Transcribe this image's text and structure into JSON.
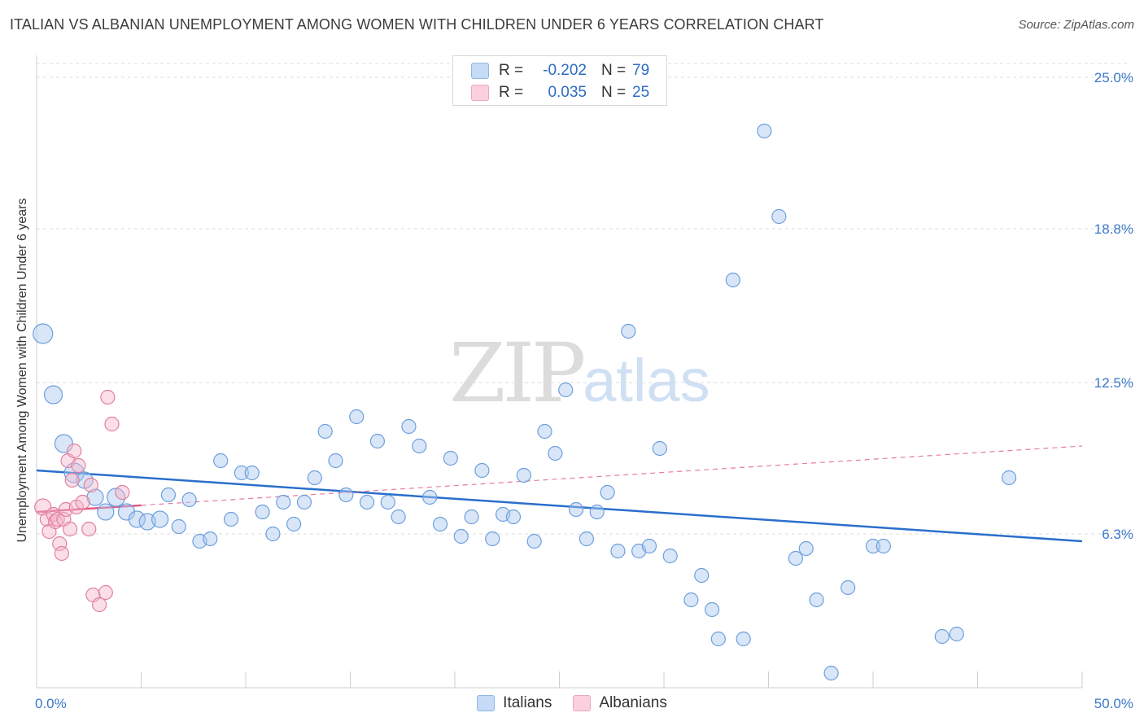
{
  "header": {
    "title": "ITALIAN VS ALBANIAN UNEMPLOYMENT AMONG WOMEN WITH CHILDREN UNDER 6 YEARS CORRELATION CHART",
    "source": "Source: ZipAtlas.com"
  },
  "watermark": {
    "zip": "ZIP",
    "atlas": "atlas"
  },
  "legend": {
    "rows": [
      {
        "label": "R =",
        "r": "-0.202",
        "n_label": "N =",
        "n": "79",
        "color": "#aac8ef"
      },
      {
        "label": "R =",
        "r": "0.035",
        "n_label": "N =",
        "n": "25",
        "color": "#f5b8cb"
      }
    ],
    "bottom": [
      "Italians",
      "Albanians"
    ]
  },
  "chart_data": {
    "type": "scatter",
    "title": "ITALIAN VS ALBANIAN UNEMPLOYMENT AMONG WOMEN WITH CHILDREN UNDER 6 YEARS CORRELATION CHART",
    "xlabel": "",
    "ylabel": "Unemployment Among Women with Children Under 6 years",
    "xlim": [
      0,
      50
    ],
    "ylim": [
      0,
      25
    ],
    "x_tick_labels": [
      "0.0%",
      "50.0%"
    ],
    "y_ticks": [
      6.3,
      12.5,
      18.8,
      25.0
    ],
    "y_tick_labels": [
      "6.3%",
      "12.5%",
      "18.8%",
      "25.0%"
    ],
    "grid": true,
    "series": [
      {
        "name": "Italians",
        "color": "#aac8ef",
        "stroke": "#6c9fdc",
        "trend": {
          "x": [
            0,
            50
          ],
          "y": [
            8.9,
            6.0
          ],
          "color": "#2a6fcc",
          "style": "solid"
        },
        "points": [
          [
            0.3,
            14.5,
            6
          ],
          [
            0.8,
            12.0,
            5
          ],
          [
            1.3,
            10.0,
            5
          ],
          [
            1.8,
            8.8,
            6
          ],
          [
            2.3,
            8.5,
            4
          ],
          [
            2.8,
            7.8,
            4
          ],
          [
            3.3,
            7.2,
            4
          ],
          [
            3.8,
            7.8,
            5
          ],
          [
            4.3,
            7.2,
            4
          ],
          [
            4.8,
            6.9,
            4
          ],
          [
            5.3,
            6.8,
            4
          ],
          [
            5.9,
            6.9,
            4
          ],
          [
            6.3,
            7.9,
            3
          ],
          [
            6.8,
            6.6,
            3
          ],
          [
            7.3,
            7.7,
            3
          ],
          [
            7.8,
            6.0,
            3
          ],
          [
            8.3,
            6.1,
            3
          ],
          [
            8.8,
            9.3,
            3
          ],
          [
            9.3,
            6.9,
            3
          ],
          [
            9.8,
            8.8,
            3
          ],
          [
            10.3,
            8.8,
            3
          ],
          [
            10.8,
            7.2,
            3
          ],
          [
            11.3,
            6.3,
            3
          ],
          [
            11.8,
            7.6,
            3
          ],
          [
            12.3,
            6.7,
            3
          ],
          [
            12.8,
            7.6,
            3
          ],
          [
            13.3,
            8.6,
            3
          ],
          [
            13.8,
            10.5,
            3
          ],
          [
            14.3,
            9.3,
            3
          ],
          [
            14.8,
            7.9,
            3
          ],
          [
            15.3,
            11.1,
            3
          ],
          [
            15.8,
            7.6,
            3
          ],
          [
            16.3,
            10.1,
            3
          ],
          [
            16.8,
            7.6,
            3
          ],
          [
            17.3,
            7.0,
            3
          ],
          [
            17.8,
            10.7,
            3
          ],
          [
            18.3,
            9.9,
            3
          ],
          [
            18.8,
            7.8,
            3
          ],
          [
            19.3,
            6.7,
            3
          ],
          [
            19.8,
            9.4,
            3
          ],
          [
            20.3,
            6.2,
            3
          ],
          [
            20.8,
            7.0,
            3
          ],
          [
            21.3,
            8.9,
            3
          ],
          [
            21.8,
            6.1,
            3
          ],
          [
            22.3,
            7.1,
            3
          ],
          [
            22.8,
            7.0,
            3
          ],
          [
            23.3,
            8.7,
            3
          ],
          [
            23.8,
            6.0,
            3
          ],
          [
            24.3,
            10.5,
            3
          ],
          [
            24.8,
            9.6,
            3
          ],
          [
            25.3,
            12.2,
            3
          ],
          [
            25.8,
            7.3,
            3
          ],
          [
            26.3,
            6.1,
            3
          ],
          [
            26.8,
            7.2,
            3
          ],
          [
            27.3,
            8.0,
            3
          ],
          [
            27.8,
            5.6,
            3
          ],
          [
            28.3,
            14.6,
            3
          ],
          [
            28.8,
            5.6,
            3
          ],
          [
            29.3,
            5.8,
            3
          ],
          [
            29.8,
            9.8,
            3
          ],
          [
            30.3,
            5.4,
            3
          ],
          [
            31.3,
            3.6,
            3
          ],
          [
            31.8,
            4.6,
            3
          ],
          [
            32.3,
            3.2,
            3
          ],
          [
            32.6,
            2.0,
            3
          ],
          [
            33.3,
            16.7,
            3
          ],
          [
            33.8,
            2.0,
            3
          ],
          [
            34.8,
            22.8,
            3
          ],
          [
            35.5,
            19.3,
            3
          ],
          [
            36.3,
            5.3,
            3
          ],
          [
            36.8,
            5.7,
            3
          ],
          [
            37.3,
            3.6,
            3
          ],
          [
            38.0,
            0.6,
            3
          ],
          [
            38.8,
            4.1,
            3
          ],
          [
            40.0,
            5.8,
            3
          ],
          [
            40.5,
            5.8,
            3
          ],
          [
            43.3,
            2.1,
            3
          ],
          [
            44.0,
            2.2,
            3
          ],
          [
            46.5,
            8.6,
            3
          ]
        ]
      },
      {
        "name": "Albanians",
        "color": "#f5b8cb",
        "stroke": "#e27f9f",
        "trend": {
          "x": [
            0,
            50
          ],
          "y": [
            7.2,
            9.9
          ],
          "color": "#e05a86",
          "style": "dashed",
          "solid_until": 5
        },
        "points": [
          [
            0.3,
            7.4,
            4
          ],
          [
            0.5,
            6.9,
            3
          ],
          [
            0.6,
            6.4,
            3
          ],
          [
            0.8,
            7.1,
            3
          ],
          [
            0.9,
            6.8,
            3
          ],
          [
            1.0,
            6.9,
            3
          ],
          [
            1.1,
            5.9,
            3
          ],
          [
            1.2,
            5.5,
            3
          ],
          [
            1.3,
            6.9,
            3
          ],
          [
            1.4,
            7.3,
            3
          ],
          [
            1.5,
            9.3,
            3
          ],
          [
            1.6,
            6.5,
            3
          ],
          [
            1.7,
            8.5,
            3
          ],
          [
            1.8,
            9.7,
            3
          ],
          [
            1.9,
            7.4,
            3
          ],
          [
            2.0,
            9.1,
            3
          ],
          [
            2.2,
            7.6,
            3
          ],
          [
            2.5,
            6.5,
            3
          ],
          [
            2.6,
            8.3,
            3
          ],
          [
            2.7,
            3.8,
            3
          ],
          [
            3.0,
            3.4,
            3
          ],
          [
            3.3,
            3.9,
            3
          ],
          [
            3.4,
            11.9,
            3
          ],
          [
            3.6,
            10.8,
            3
          ],
          [
            4.1,
            8.0,
            3
          ]
        ]
      }
    ]
  }
}
